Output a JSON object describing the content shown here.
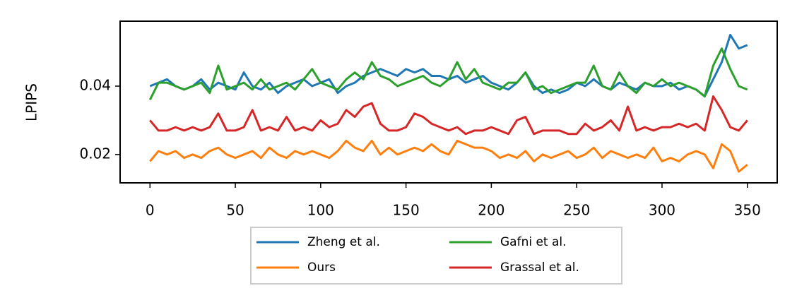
{
  "chart_data": {
    "type": "line",
    "y_label": "LPIPS",
    "x": [
      0,
      5,
      10,
      15,
      20,
      25,
      30,
      35,
      40,
      45,
      50,
      55,
      60,
      65,
      70,
      75,
      80,
      85,
      90,
      95,
      100,
      105,
      110,
      115,
      120,
      125,
      130,
      135,
      140,
      145,
      150,
      155,
      160,
      165,
      170,
      175,
      180,
      185,
      190,
      195,
      200,
      205,
      210,
      215,
      220,
      225,
      230,
      235,
      240,
      245,
      250,
      255,
      260,
      265,
      270,
      275,
      280,
      285,
      290,
      295,
      300,
      305,
      310,
      315,
      320,
      325,
      330,
      335,
      340,
      345,
      350
    ],
    "series": [
      {
        "name": "Zheng et al.",
        "color": "#1f77b4",
        "values": [
          0.04,
          0.041,
          0.042,
          0.04,
          0.039,
          0.04,
          0.042,
          0.039,
          0.041,
          0.04,
          0.039,
          0.044,
          0.04,
          0.039,
          0.041,
          0.038,
          0.04,
          0.041,
          0.042,
          0.04,
          0.041,
          0.042,
          0.038,
          0.04,
          0.041,
          0.043,
          0.044,
          0.045,
          0.044,
          0.043,
          0.045,
          0.044,
          0.045,
          0.043,
          0.043,
          0.042,
          0.043,
          0.041,
          0.042,
          0.043,
          0.041,
          0.04,
          0.039,
          0.041,
          0.044,
          0.04,
          0.038,
          0.039,
          0.038,
          0.039,
          0.041,
          0.04,
          0.042,
          0.04,
          0.039,
          0.041,
          0.04,
          0.039,
          0.041,
          0.04,
          0.04,
          0.041,
          0.039,
          0.04,
          0.039,
          0.037,
          0.042,
          0.047,
          0.055,
          0.051,
          0.052
        ]
      },
      {
        "name": "Ours",
        "color": "#ff7f0e",
        "values": [
          0.018,
          0.021,
          0.02,
          0.021,
          0.019,
          0.02,
          0.019,
          0.021,
          0.022,
          0.02,
          0.019,
          0.02,
          0.021,
          0.019,
          0.022,
          0.02,
          0.019,
          0.021,
          0.02,
          0.021,
          0.02,
          0.019,
          0.021,
          0.024,
          0.022,
          0.021,
          0.024,
          0.02,
          0.022,
          0.02,
          0.021,
          0.022,
          0.021,
          0.023,
          0.021,
          0.02,
          0.024,
          0.023,
          0.022,
          0.022,
          0.021,
          0.019,
          0.02,
          0.019,
          0.021,
          0.018,
          0.02,
          0.019,
          0.02,
          0.021,
          0.019,
          0.02,
          0.022,
          0.019,
          0.021,
          0.02,
          0.019,
          0.02,
          0.019,
          0.022,
          0.018,
          0.019,
          0.018,
          0.02,
          0.021,
          0.02,
          0.016,
          0.023,
          0.021,
          0.015,
          0.017
        ]
      },
      {
        "name": "Gafni et al.",
        "color": "#2ca02c",
        "values": [
          0.036,
          0.041,
          0.041,
          0.04,
          0.039,
          0.04,
          0.041,
          0.038,
          0.046,
          0.039,
          0.04,
          0.041,
          0.039,
          0.042,
          0.039,
          0.04,
          0.041,
          0.039,
          0.042,
          0.045,
          0.041,
          0.04,
          0.039,
          0.042,
          0.044,
          0.042,
          0.047,
          0.043,
          0.042,
          0.04,
          0.041,
          0.042,
          0.043,
          0.041,
          0.04,
          0.042,
          0.047,
          0.042,
          0.045,
          0.041,
          0.04,
          0.039,
          0.041,
          0.041,
          0.044,
          0.039,
          0.04,
          0.038,
          0.039,
          0.04,
          0.041,
          0.041,
          0.046,
          0.04,
          0.039,
          0.044,
          0.04,
          0.038,
          0.041,
          0.04,
          0.042,
          0.04,
          0.041,
          0.04,
          0.039,
          0.037,
          0.046,
          0.051,
          0.045,
          0.04,
          0.039
        ]
      },
      {
        "name": "Grassal et al.",
        "color": "#d62728",
        "values": [
          0.03,
          0.027,
          0.027,
          0.028,
          0.027,
          0.028,
          0.027,
          0.028,
          0.032,
          0.027,
          0.027,
          0.028,
          0.033,
          0.027,
          0.028,
          0.027,
          0.031,
          0.027,
          0.028,
          0.027,
          0.03,
          0.028,
          0.029,
          0.033,
          0.031,
          0.034,
          0.035,
          0.029,
          0.027,
          0.027,
          0.028,
          0.032,
          0.031,
          0.029,
          0.028,
          0.027,
          0.028,
          0.026,
          0.027,
          0.027,
          0.028,
          0.027,
          0.026,
          0.03,
          0.031,
          0.026,
          0.027,
          0.027,
          0.027,
          0.026,
          0.026,
          0.029,
          0.027,
          0.028,
          0.03,
          0.027,
          0.034,
          0.027,
          0.028,
          0.027,
          0.028,
          0.028,
          0.029,
          0.028,
          0.029,
          0.027,
          0.037,
          0.033,
          0.028,
          0.027,
          0.03
        ]
      }
    ],
    "xlim": [
      -17.5,
      367.5
    ],
    "ylim": [
      0.0117,
      0.059
    ],
    "xticks": [
      0,
      50,
      100,
      150,
      200,
      250,
      300,
      350
    ],
    "yticks": [
      0.02,
      0.04
    ],
    "grid": false,
    "legend": "below",
    "legend_columns": 2
  }
}
